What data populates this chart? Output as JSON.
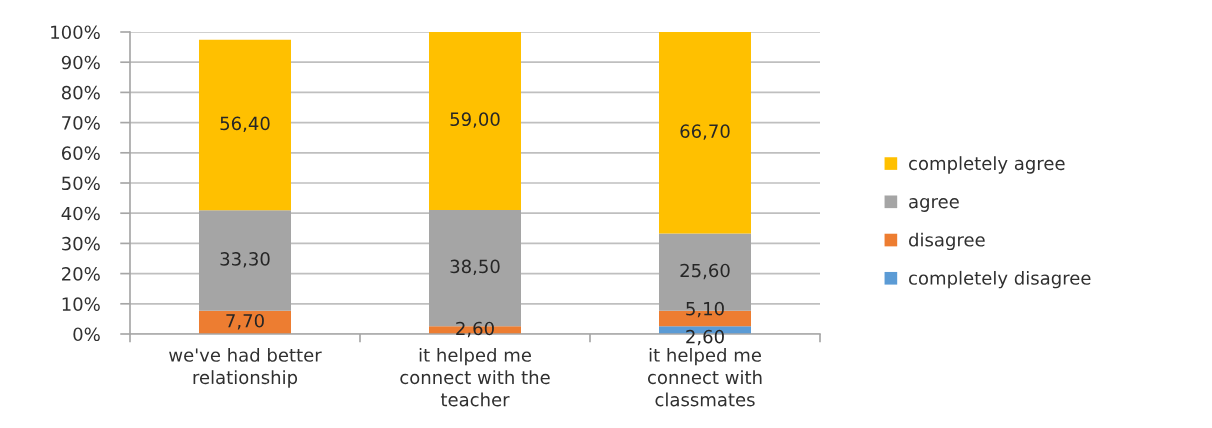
{
  "chart_data": {
    "type": "bar",
    "stacked": true,
    "categories": [
      "we've had better relationship",
      "it helped me connect with the teacher",
      "it helped me connect with classmates"
    ],
    "series": [
      {
        "name": "completely disagree",
        "color": "#5b9bd5",
        "values": [
          null,
          null,
          2.6
        ],
        "value_labels": [
          null,
          null,
          "2,60"
        ]
      },
      {
        "name": "disagree",
        "color": "#ed7d31",
        "values": [
          7.7,
          2.6,
          5.1
        ],
        "value_labels": [
          "7,70",
          "2,60",
          "5,10"
        ]
      },
      {
        "name": "agree",
        "color": "#a5a5a5",
        "values": [
          33.3,
          38.5,
          25.6
        ],
        "value_labels": [
          "33,30",
          "38,50",
          "25,60"
        ]
      },
      {
        "name": "completely agree",
        "color": "#ffc000",
        "values": [
          56.4,
          59.0,
          66.7
        ],
        "value_labels": [
          "56,40",
          "59,00",
          "66,70"
        ]
      }
    ],
    "ylim": [
      0,
      100
    ],
    "yticks": [
      {
        "value": 0,
        "label": "0%"
      },
      {
        "value": 10,
        "label": "10%"
      },
      {
        "value": 20,
        "label": "20%"
      },
      {
        "value": 30,
        "label": "30%"
      },
      {
        "value": 40,
        "label": "40%"
      },
      {
        "value": 50,
        "label": "50%"
      },
      {
        "value": 60,
        "label": "60%"
      },
      {
        "value": 70,
        "label": "70%"
      },
      {
        "value": 80,
        "label": "80%"
      },
      {
        "value": 90,
        "label": "90%"
      },
      {
        "value": 100,
        "label": "100%"
      }
    ],
    "grid": "y",
    "legend": "right"
  }
}
